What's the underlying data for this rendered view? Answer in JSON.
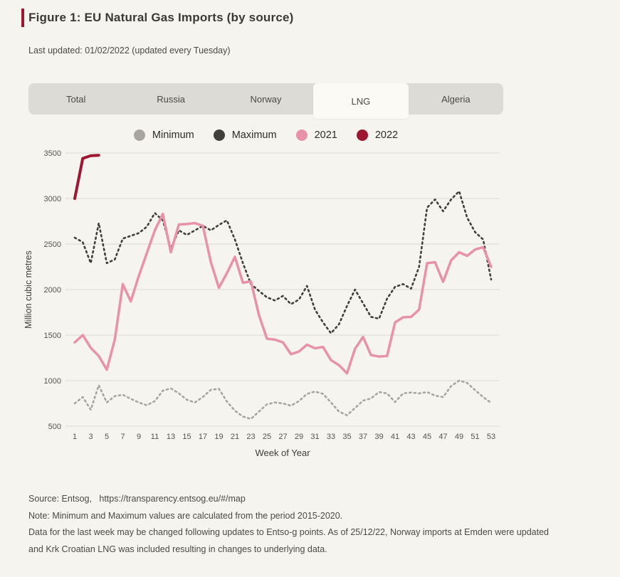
{
  "page": {
    "title": "Figure 1: EU Natural Gas Imports (by source)",
    "last_updated": "Last updated: 01/02/2022 (updated every Tuesday)"
  },
  "tabs": {
    "items": [
      {
        "label": "Total",
        "active": false
      },
      {
        "label": "Russia",
        "active": false
      },
      {
        "label": "Norway",
        "active": false
      },
      {
        "label": "LNG",
        "active": true
      },
      {
        "label": "Algeria",
        "active": false
      }
    ]
  },
  "colors": {
    "accent": "#9f1632",
    "background": "#f6f4ef",
    "tabbar": "#dddbd6",
    "active_tab": "#fbfaf5",
    "gridline": "#dcd9d3"
  },
  "chart_data": {
    "type": "line",
    "xlabel": "Week of Year",
    "ylabel": "Million cubic metres",
    "x_unit": "week of year, weekly points starting at week 1",
    "x_ticks": [
      1,
      3,
      5,
      7,
      9,
      11,
      13,
      15,
      17,
      19,
      21,
      23,
      25,
      27,
      29,
      31,
      33,
      35,
      37,
      39,
      41,
      43,
      45,
      47,
      49,
      51,
      53
    ],
    "y_ticks": [
      500,
      1000,
      1500,
      2000,
      2500,
      3000,
      3500
    ],
    "ylim": [
      500,
      3500
    ],
    "xlim": [
      1,
      53
    ],
    "grid": "horizontal only",
    "legend_position": "top center",
    "series": [
      {
        "name": "Minimum",
        "color": "#a8a5a1",
        "style": "dotted",
        "values": [
          750,
          820,
          680,
          950,
          760,
          830,
          845,
          800,
          760,
          730,
          775,
          890,
          915,
          860,
          790,
          760,
          820,
          900,
          910,
          770,
          670,
          605,
          580,
          660,
          740,
          760,
          750,
          725,
          775,
          855,
          880,
          855,
          760,
          660,
          620,
          700,
          780,
          805,
          875,
          860,
          765,
          860,
          870,
          860,
          875,
          835,
          820,
          940,
          1000,
          975,
          895,
          820,
          755
        ]
      },
      {
        "name": "Maximum",
        "color": "#413f3c",
        "style": "dotted",
        "values": [
          2570,
          2520,
          2290,
          2730,
          2290,
          2330,
          2560,
          2590,
          2620,
          2690,
          2840,
          2760,
          2450,
          2650,
          2600,
          2650,
          2700,
          2650,
          2710,
          2760,
          2550,
          2290,
          2060,
          1985,
          1915,
          1880,
          1930,
          1840,
          1890,
          2040,
          1780,
          1640,
          1520,
          1620,
          1820,
          2000,
          1850,
          1700,
          1680,
          1900,
          2030,
          2060,
          2010,
          2250,
          2900,
          2990,
          2860,
          2990,
          3080,
          2790,
          2630,
          2550,
          2110
        ]
      },
      {
        "name": "2021",
        "color": "#e891a7",
        "style": "solid",
        "values": [
          1420,
          1500,
          1360,
          1270,
          1120,
          1450,
          2060,
          1870,
          2150,
          2400,
          2650,
          2830,
          2410,
          2715,
          2720,
          2730,
          2700,
          2300,
          2020,
          2180,
          2360,
          2075,
          2090,
          1720,
          1460,
          1450,
          1420,
          1290,
          1320,
          1395,
          1355,
          1370,
          1225,
          1170,
          1080,
          1350,
          1480,
          1280,
          1265,
          1270,
          1640,
          1695,
          1700,
          1780,
          2290,
          2300,
          2085,
          2320,
          2410,
          2370,
          2440,
          2465,
          2250
        ]
      },
      {
        "name": "2022",
        "color": "#9f1632",
        "style": "solid",
        "values": [
          3000,
          3440,
          3470,
          3475
        ]
      }
    ],
    "note": "Minimum and Maximum calculated from period 2015-2020"
  },
  "footer": {
    "source_prefix": "Source: Entsog,",
    "source_url": "https://transparency.entsog.eu/#/map",
    "note_line": "Note: Minimum and Maximum values are calculated from the period 2015-2020.",
    "data_line1": "Data for the last week may be changed following updates to Entso-g points. As of 25/12/22, Norway imports at Emden were updated",
    "data_line2": "and Krk Croatian LNG was included resulting in changes to underlying data."
  }
}
